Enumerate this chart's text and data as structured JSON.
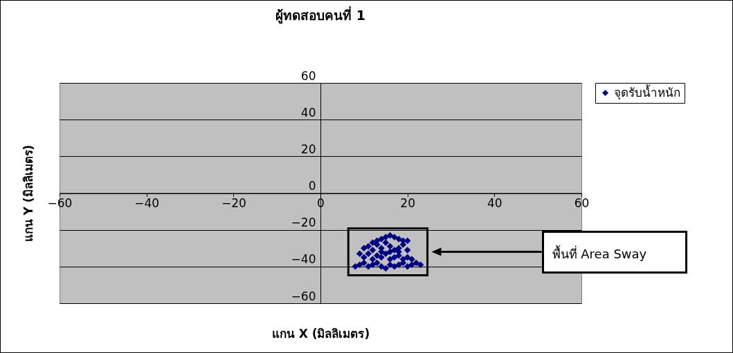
{
  "chart_data": {
    "type": "scatter",
    "title": "ผู้ทดสอบคนที่ 1",
    "xlabel": "แกน X (มิลลิเมตร)",
    "ylabel": "แกน Y (มิลลิเมตร)",
    "xlim": [
      -60,
      60
    ],
    "xticks": [
      -60,
      -40,
      -20,
      0,
      20,
      40,
      60
    ],
    "ylim": [
      -60,
      60
    ],
    "yticks": [
      -60,
      -40,
      -20,
      0,
      20,
      40,
      60
    ],
    "grid": "y",
    "legend": "right",
    "marker": "diamond",
    "annotations": [
      "พื้นที่ Area Sway"
    ],
    "series": [
      {
        "name": "จุดรับน้ำหนัก",
        "color": "#000080",
        "x": [
          8,
          9,
          10,
          11,
          12,
          13,
          14,
          15,
          16,
          17,
          18,
          19,
          20,
          21,
          22,
          23,
          10,
          11,
          12,
          13,
          14,
          15,
          16,
          17,
          18,
          19,
          20,
          10,
          11,
          12,
          13,
          14,
          15,
          16,
          17,
          18,
          19,
          13,
          14,
          15,
          16,
          17,
          18,
          19,
          20,
          12,
          14,
          16,
          18,
          20,
          21,
          9
        ],
        "values": [
          -40,
          -39,
          -38,
          -40,
          -39,
          -38,
          -40,
          -41,
          -39,
          -40,
          -39,
          -38,
          -40,
          -39,
          -38,
          -39,
          -35,
          -33,
          -36,
          -34,
          -35,
          -33,
          -36,
          -35,
          -34,
          -36,
          -35,
          -30,
          -29,
          -31,
          -28,
          -30,
          -27,
          -29,
          -31,
          -30,
          -28,
          -26,
          -25,
          -24,
          -23,
          -24,
          -25,
          -26,
          -26,
          -27,
          -32,
          -32,
          -32,
          -31,
          -36,
          -33
        ]
      }
    ]
  }
}
